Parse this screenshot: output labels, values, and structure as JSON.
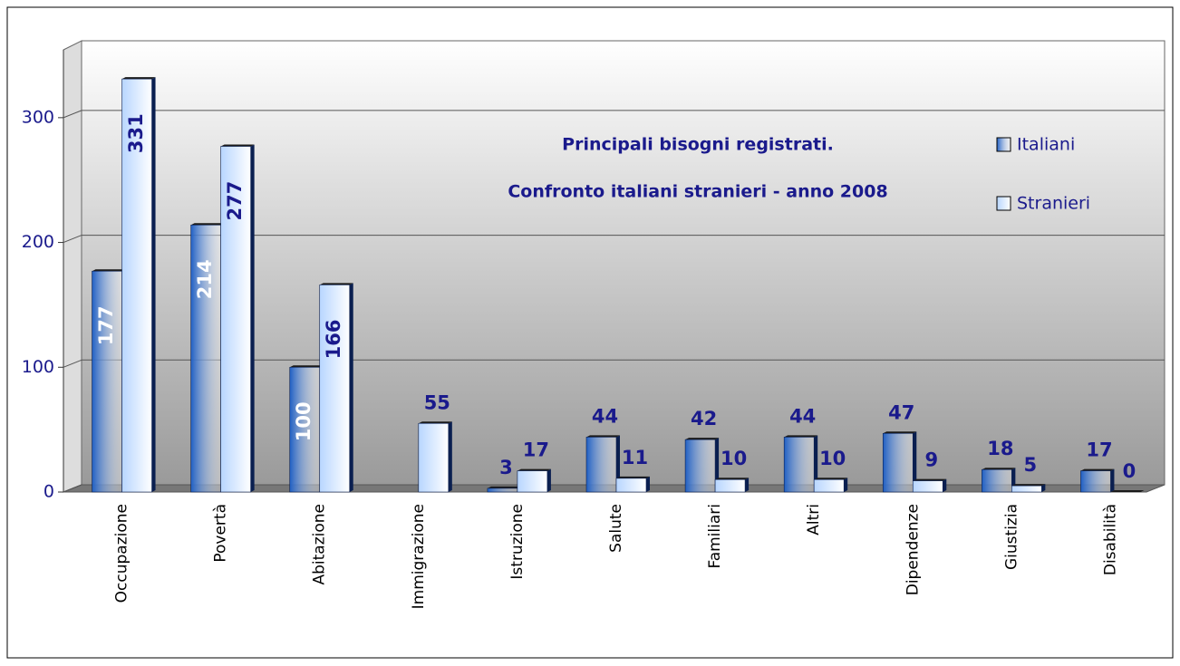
{
  "chart_data": {
    "type": "bar",
    "title": "Principali bisogni registrati.",
    "subtitle": "Confronto italiani stranieri - anno 2008",
    "categories": [
      "Occupazione",
      "Povertà",
      "Abitazione",
      "Immigrazione",
      "Istruzione",
      "Salute",
      "Familiari",
      "Altri",
      "Dipendenze",
      "Giustizia",
      "Disabilità"
    ],
    "series": [
      {
        "name": "Italiani",
        "color": "#1f5fc4",
        "values": [
          177,
          214,
          100,
          null,
          3,
          44,
          42,
          44,
          47,
          18,
          17
        ]
      },
      {
        "name": "Stranieri",
        "color": "#b8d6ff",
        "values": [
          331,
          277,
          166,
          55,
          17,
          11,
          10,
          10,
          9,
          5,
          0
        ]
      }
    ],
    "ylim": [
      0,
      350
    ],
    "yticks": [
      0,
      100,
      200,
      300
    ],
    "grid": true,
    "legend": "top-right"
  }
}
